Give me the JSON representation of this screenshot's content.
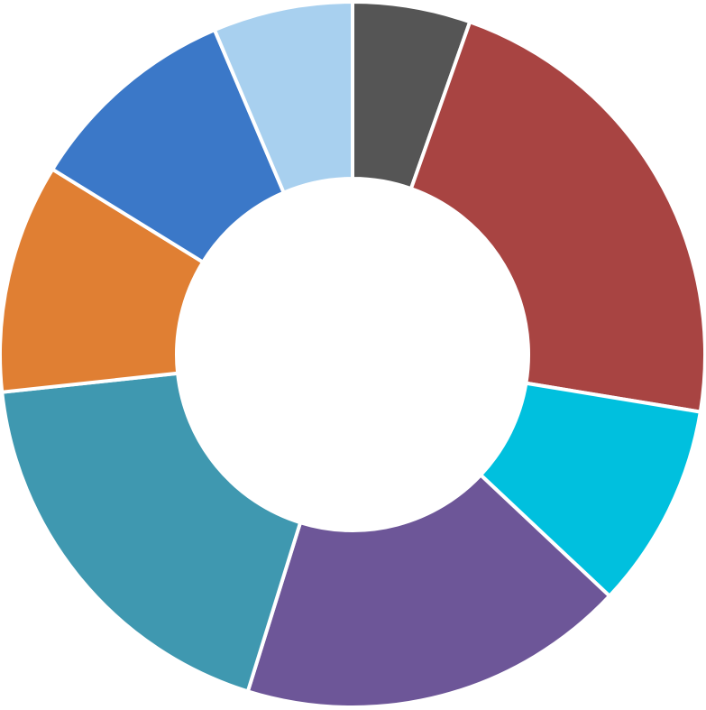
{
  "chart_data": {
    "type": "pie",
    "variant": "donut",
    "title": "",
    "legend": "none",
    "start": "top",
    "direction": "clockwise",
    "slices": [
      {
        "value": 5.4,
        "color": "#555555"
      },
      {
        "value": 22.2,
        "color": "#a84442"
      },
      {
        "value": 9.4,
        "color": "#00c0de"
      },
      {
        "value": 17.8,
        "color": "#6d5698"
      },
      {
        "value": 18.5,
        "color": "#3f98b0"
      },
      {
        "value": 10.5,
        "color": "#e07f33"
      },
      {
        "value": 9.8,
        "color": "#3b78c8"
      },
      {
        "value": 6.4,
        "color": "#a8d0ef"
      }
    ]
  }
}
